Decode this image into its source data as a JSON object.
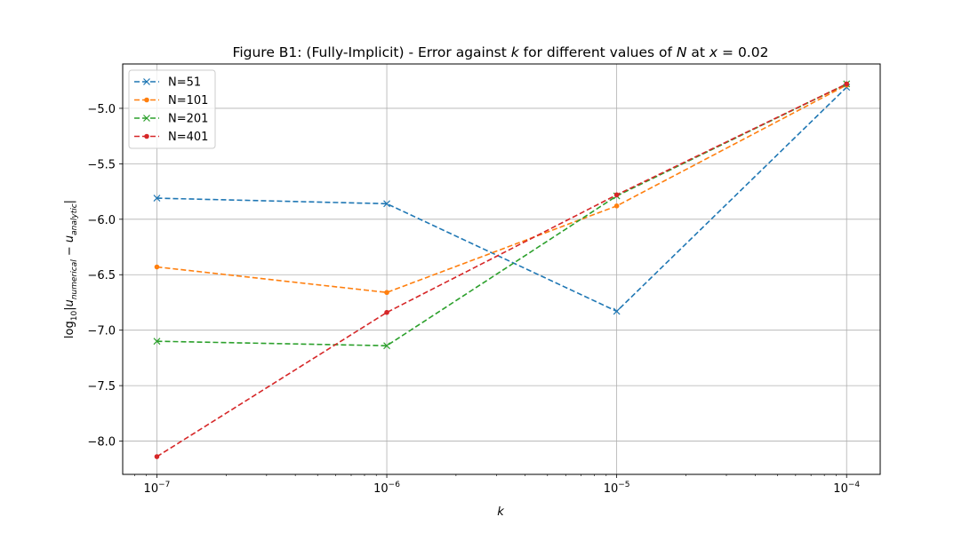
{
  "chart_data": {
    "type": "line",
    "title": {
      "prefix": "Figure B1: (Fully-Implicit) - Error against ",
      "k": "k",
      "mid": " for different values of ",
      "N": "N",
      "at": " at ",
      "x": "x",
      "eq": " = 0.02"
    },
    "xlabel": "k",
    "ylabel": {
      "log": "log",
      "sub": "10",
      "bar_open": "|",
      "u1": "u",
      "u1_sub": "numerical",
      "minus": " − ",
      "u2": "u",
      "u2_sub": "analytic",
      "bar_close": "|"
    },
    "x_scale": "log",
    "xlim": [
      7.1e-08,
      0.00014
    ],
    "ylim": [
      -8.3,
      -4.6
    ],
    "grid": true,
    "legend_position": "upper left",
    "x_ticks": [
      {
        "value": 1e-07,
        "base": "10",
        "exp": "−7"
      },
      {
        "value": 1e-06,
        "base": "10",
        "exp": "−6"
      },
      {
        "value": 1e-05,
        "base": "10",
        "exp": "−5"
      },
      {
        "value": 0.0001,
        "base": "10",
        "exp": "−4"
      }
    ],
    "y_ticks": [
      {
        "value": -8.0,
        "label": "−8.0"
      },
      {
        "value": -7.5,
        "label": "−7.5"
      },
      {
        "value": -7.0,
        "label": "−7.0"
      },
      {
        "value": -6.5,
        "label": "−6.5"
      },
      {
        "value": -6.0,
        "label": "−6.0"
      },
      {
        "value": -5.5,
        "label": "−5.5"
      },
      {
        "value": -5.0,
        "label": "−5.0"
      }
    ],
    "x": [
      1e-07,
      1e-06,
      1e-05,
      0.0001
    ],
    "series": [
      {
        "name": "N=51",
        "color": "#1f77b4",
        "marker": "x",
        "values": [
          -5.81,
          -5.86,
          -6.83,
          -4.81
        ]
      },
      {
        "name": "N=101",
        "color": "#ff7f0e",
        "marker": "dot",
        "values": [
          -6.43,
          -6.66,
          -5.88,
          -4.79
        ]
      },
      {
        "name": "N=201",
        "color": "#2ca02c",
        "marker": "x",
        "values": [
          -7.1,
          -7.14,
          -5.79,
          -4.78
        ]
      },
      {
        "name": "N=401",
        "color": "#d62728",
        "marker": "dot",
        "values": [
          -8.14,
          -6.84,
          -5.78,
          -4.78
        ]
      }
    ]
  }
}
